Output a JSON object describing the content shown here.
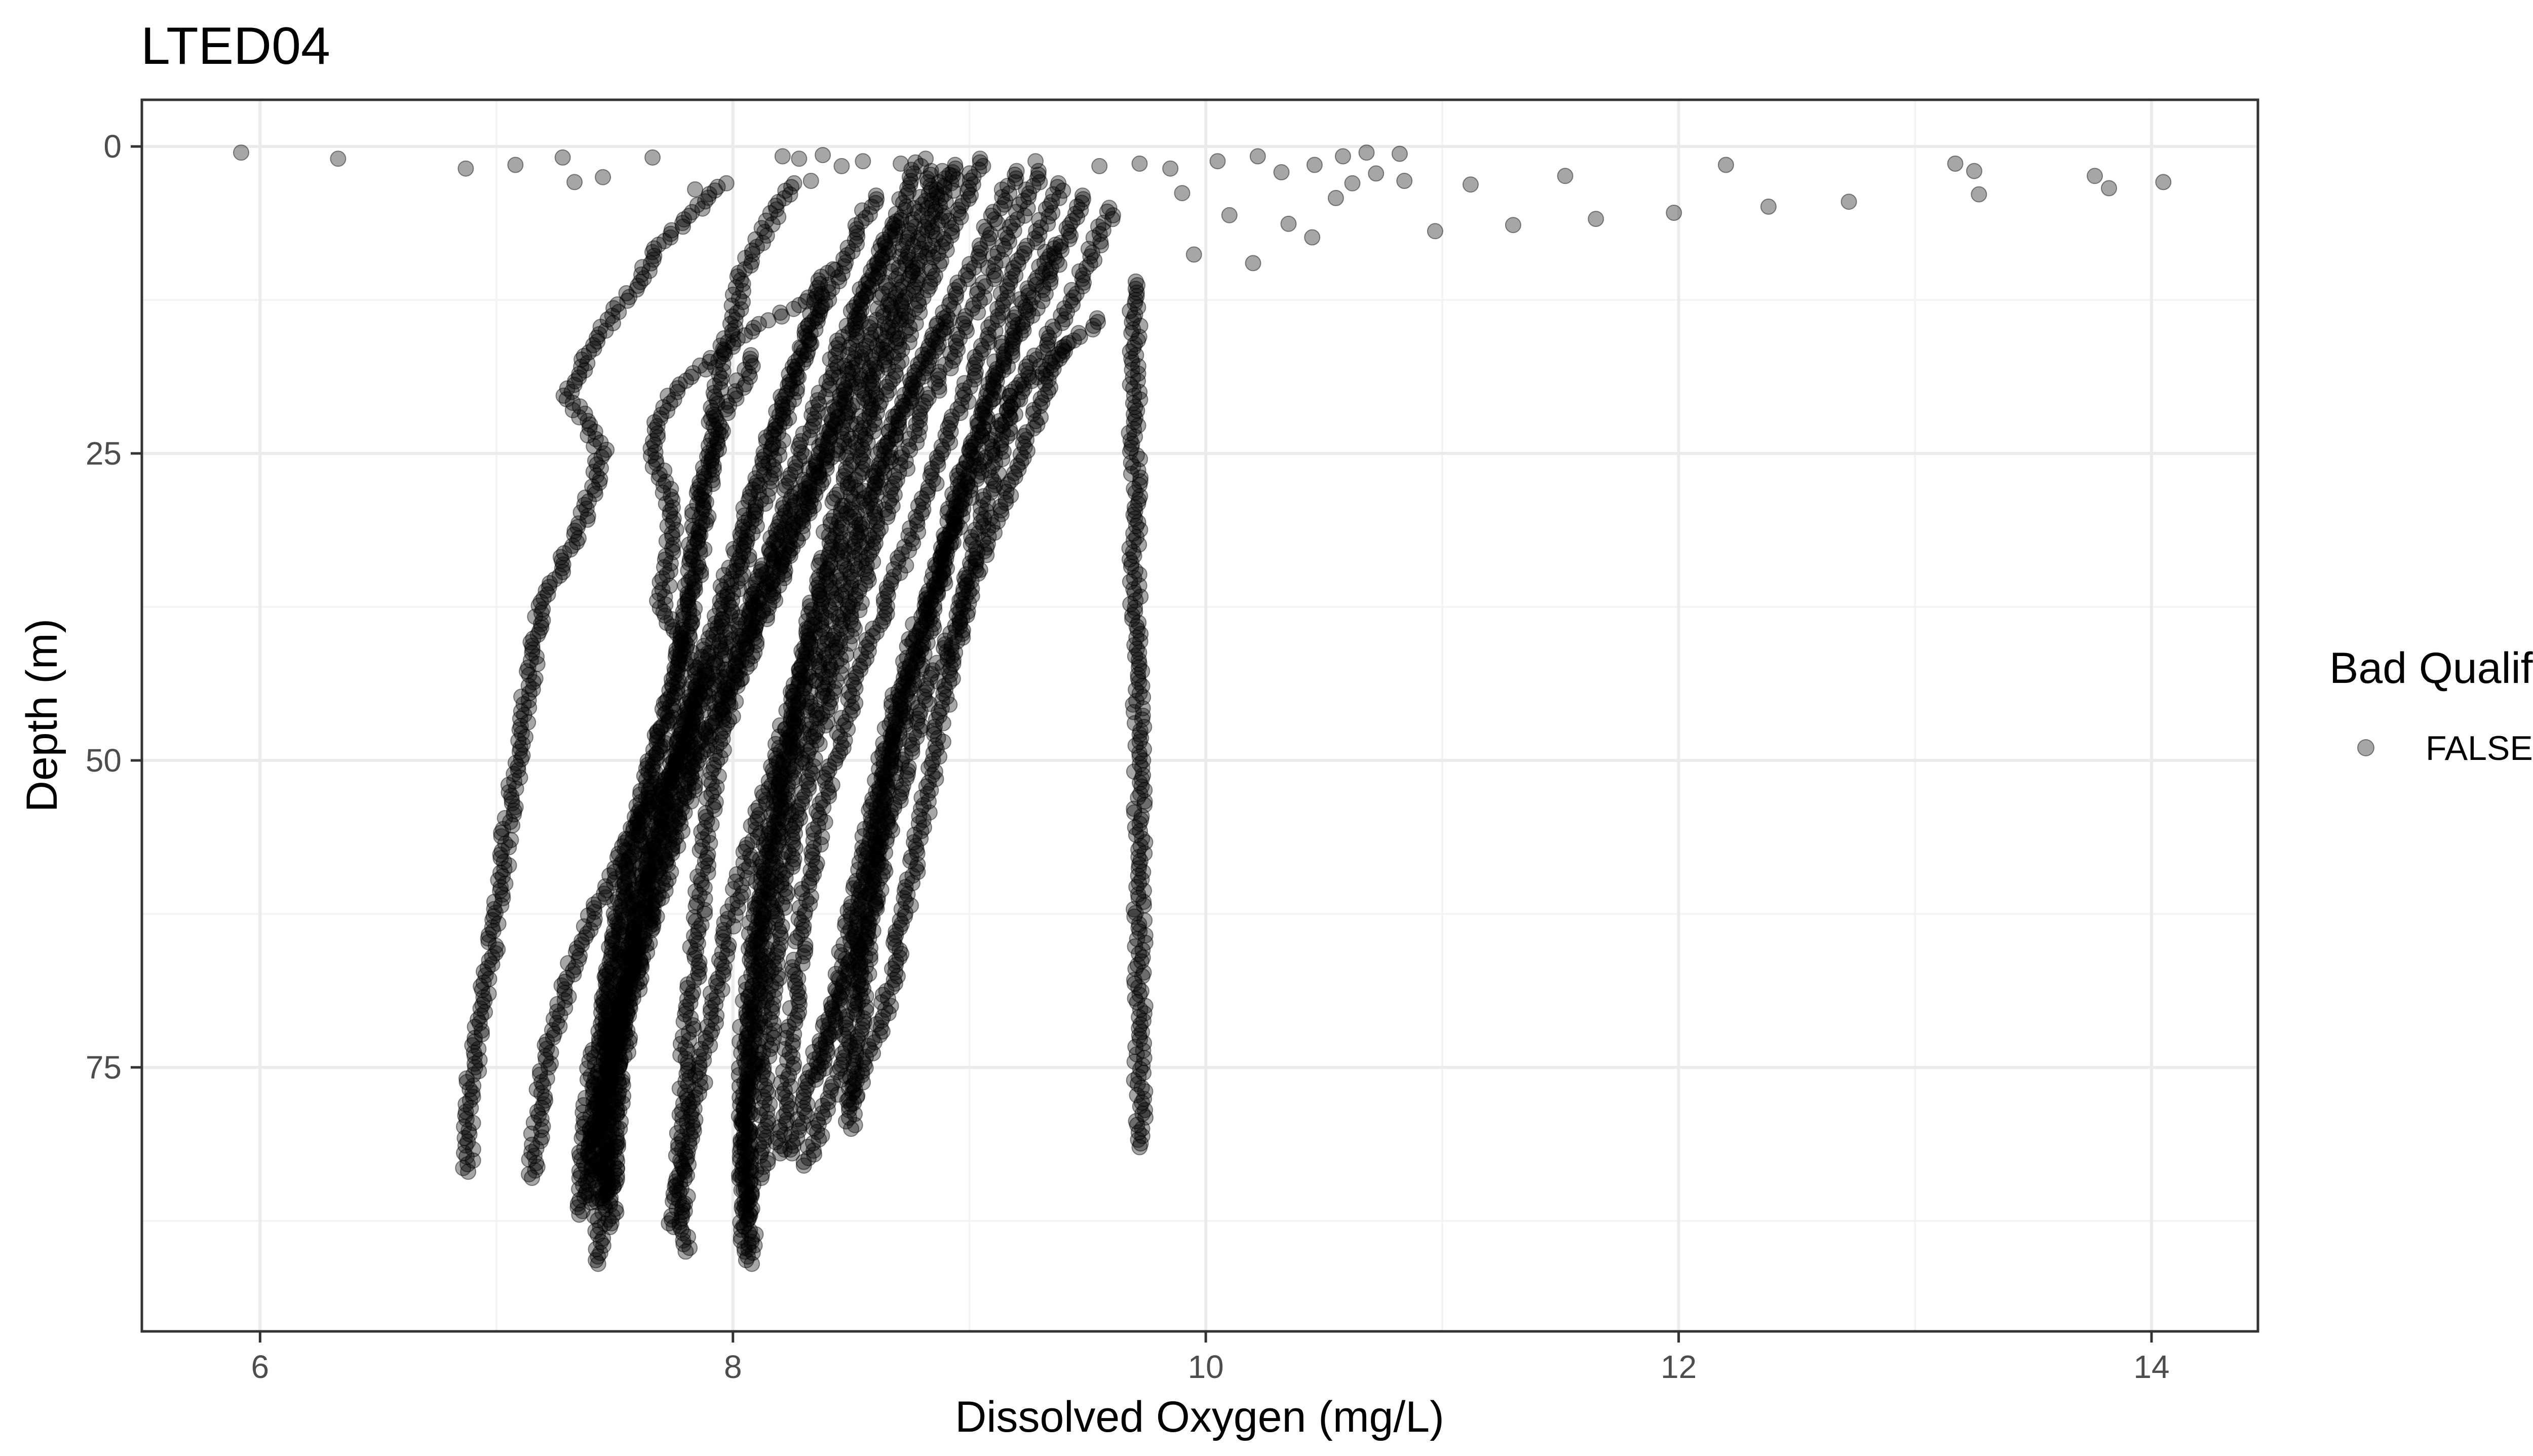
{
  "chart_data": {
    "type": "scatter",
    "title": "LTED04",
    "xlabel": "Dissolved Oxygen (mg/L)",
    "ylabel": "Depth (m)",
    "xlim": [
      5.5,
      14.45
    ],
    "ylim": [
      96.5,
      -3.8
    ],
    "y_reversed": true,
    "x_ticks": [
      6,
      8,
      10,
      12,
      14
    ],
    "y_ticks": [
      0,
      25,
      50,
      75
    ],
    "grid": true,
    "legend": {
      "title": "Bad Qualifier",
      "position": "right",
      "entries": [
        {
          "label": "FALSE",
          "color": "#000000",
          "alpha": 0.35
        }
      ]
    },
    "point_color": "#000000",
    "point_alpha": 0.35,
    "surface_points": [
      [
        5.92,
        0.5
      ],
      [
        6.33,
        1.0
      ],
      [
        6.87,
        1.8
      ],
      [
        7.08,
        1.5
      ],
      [
        7.28,
        0.9
      ],
      [
        7.33,
        2.9
      ],
      [
        7.45,
        2.5
      ],
      [
        7.66,
        0.9
      ],
      [
        7.84,
        3.5
      ],
      [
        8.21,
        0.8
      ],
      [
        8.28,
        1.0
      ],
      [
        8.33,
        2.8
      ],
      [
        8.38,
        0.7
      ],
      [
        8.46,
        1.6
      ],
      [
        8.55,
        1.2
      ],
      [
        8.71,
        1.4
      ],
      [
        9.28,
        1.2
      ],
      [
        9.55,
        1.6
      ],
      [
        9.72,
        1.4
      ],
      [
        9.85,
        1.8
      ],
      [
        10.05,
        1.2
      ],
      [
        10.22,
        0.8
      ],
      [
        10.32,
        2.1
      ],
      [
        10.46,
        1.5
      ],
      [
        10.58,
        0.8
      ],
      [
        10.68,
        0.5
      ],
      [
        10.72,
        2.2
      ],
      [
        10.82,
        0.6
      ],
      [
        10.84,
        2.8
      ],
      [
        10.97,
        6.9
      ],
      [
        11.12,
        3.1
      ],
      [
        11.3,
        6.4
      ],
      [
        11.52,
        2.4
      ],
      [
        11.65,
        5.9
      ],
      [
        11.98,
        5.4
      ],
      [
        12.2,
        1.5
      ],
      [
        12.38,
        4.9
      ],
      [
        12.72,
        4.5
      ],
      [
        13.17,
        1.4
      ],
      [
        13.25,
        2.0
      ],
      [
        13.27,
        3.9
      ],
      [
        13.76,
        2.4
      ],
      [
        13.82,
        3.4
      ],
      [
        14.05,
        2.9
      ],
      [
        10.1,
        5.6
      ],
      [
        10.35,
        6.3
      ],
      [
        9.95,
        8.8
      ],
      [
        10.2,
        9.5
      ],
      [
        10.55,
        4.2
      ],
      [
        10.45,
        7.4
      ],
      [
        9.9,
        3.8
      ],
      [
        10.62,
        3.0
      ]
    ],
    "profiles": [
      {
        "max_depth": 83.5,
        "points": [
          [
            7.95,
            3.0
          ],
          [
            7.7,
            8.0
          ],
          [
            7.45,
            15.0
          ],
          [
            7.3,
            20.0
          ],
          [
            7.45,
            25.0
          ],
          [
            7.35,
            31.0
          ],
          [
            7.18,
            38.0
          ],
          [
            7.12,
            46.0
          ],
          [
            7.05,
            55.0
          ],
          [
            7.0,
            63.0
          ],
          [
            6.93,
            72.0
          ],
          [
            6.88,
            78.0
          ],
          [
            6.88,
            83.5
          ]
        ]
      },
      {
        "max_depth": 84.0,
        "points": [
          [
            8.35,
            12.0
          ],
          [
            8.0,
            16.0
          ],
          [
            7.75,
            20.0
          ],
          [
            7.65,
            24.0
          ],
          [
            7.75,
            30.0
          ],
          [
            7.7,
            37.0
          ],
          [
            7.85,
            43.0
          ],
          [
            7.78,
            50.0
          ],
          [
            7.55,
            57.0
          ],
          [
            7.35,
            65.0
          ],
          [
            7.2,
            75.0
          ],
          [
            7.15,
            84.0
          ]
        ]
      },
      {
        "max_depth": 81.5,
        "points": [
          [
            9.7,
            11.0
          ],
          [
            9.7,
            20.0
          ],
          [
            9.7,
            30.0
          ],
          [
            9.7,
            40.0
          ],
          [
            9.72,
            50.0
          ],
          [
            9.72,
            60.0
          ],
          [
            9.72,
            70.0
          ],
          [
            9.72,
            81.5
          ]
        ]
      },
      {
        "max_depth": 91.0,
        "points": [
          [
            8.8,
            1.0
          ],
          [
            8.6,
            10.0
          ],
          [
            8.45,
            20.0
          ],
          [
            8.3,
            30.0
          ],
          [
            8.1,
            40.0
          ],
          [
            7.85,
            50.0
          ],
          [
            7.7,
            60.0
          ],
          [
            7.55,
            70.0
          ],
          [
            7.45,
            80.0
          ],
          [
            7.43,
            91.0
          ]
        ]
      },
      {
        "max_depth": 90.0,
        "points": [
          [
            8.95,
            1.5
          ],
          [
            8.75,
            12.0
          ],
          [
            8.55,
            22.0
          ],
          [
            8.4,
            32.0
          ],
          [
            8.3,
            42.0
          ],
          [
            8.2,
            52.0
          ],
          [
            8.12,
            62.0
          ],
          [
            8.08,
            72.0
          ],
          [
            8.05,
            82.0
          ],
          [
            8.05,
            90.0
          ]
        ]
      },
      {
        "max_depth": 88.0,
        "points": [
          [
            9.05,
            1.0
          ],
          [
            8.8,
            12.0
          ],
          [
            8.6,
            22.0
          ],
          [
            8.45,
            32.0
          ],
          [
            8.3,
            42.0
          ],
          [
            8.15,
            52.0
          ],
          [
            8.0,
            62.0
          ],
          [
            7.9,
            72.0
          ],
          [
            7.8,
            82.0
          ],
          [
            7.75,
            88.0
          ]
        ]
      },
      {
        "max_depth": 87.0,
        "points": [
          [
            9.2,
            2.0
          ],
          [
            8.95,
            12.0
          ],
          [
            8.7,
            22.0
          ],
          [
            8.55,
            32.0
          ],
          [
            8.4,
            42.0
          ],
          [
            8.25,
            52.0
          ],
          [
            8.15,
            62.0
          ],
          [
            8.1,
            72.0
          ],
          [
            8.05,
            80.0
          ],
          [
            8.07,
            87.0
          ]
        ]
      },
      {
        "max_depth": 86.0,
        "points": [
          [
            8.85,
            2.0
          ],
          [
            8.65,
            12.0
          ],
          [
            8.45,
            22.0
          ],
          [
            8.2,
            32.0
          ],
          [
            7.95,
            42.0
          ],
          [
            7.75,
            52.0
          ],
          [
            7.6,
            62.0
          ],
          [
            7.5,
            72.0
          ],
          [
            7.42,
            80.0
          ],
          [
            7.4,
            86.0
          ]
        ]
      },
      {
        "max_depth": 85.0,
        "points": [
          [
            8.9,
            2.0
          ],
          [
            8.7,
            12.0
          ],
          [
            8.5,
            22.0
          ],
          [
            8.25,
            32.0
          ],
          [
            8.0,
            42.0
          ],
          [
            7.8,
            52.0
          ],
          [
            7.65,
            62.0
          ],
          [
            7.55,
            72.0
          ],
          [
            7.5,
            80.0
          ],
          [
            7.48,
            85.0
          ]
        ]
      },
      {
        "max_depth": 86.0,
        "points": [
          [
            8.4,
            10.0
          ],
          [
            8.25,
            20.0
          ],
          [
            8.1,
            30.0
          ],
          [
            7.95,
            40.0
          ],
          [
            7.75,
            50.0
          ],
          [
            7.6,
            60.0
          ],
          [
            7.5,
            70.0
          ],
          [
            7.45,
            78.0
          ],
          [
            7.45,
            86.0
          ]
        ]
      },
      {
        "max_depth": 84.0,
        "points": [
          [
            9.3,
            2.0
          ],
          [
            9.05,
            12.0
          ],
          [
            8.8,
            22.0
          ],
          [
            8.6,
            32.0
          ],
          [
            8.45,
            42.0
          ],
          [
            8.3,
            52.0
          ],
          [
            8.2,
            62.0
          ],
          [
            8.15,
            72.0
          ],
          [
            8.12,
            84.0
          ]
        ]
      },
      {
        "max_depth": 82.0,
        "points": [
          [
            9.4,
            3.0
          ],
          [
            9.15,
            12.0
          ],
          [
            8.95,
            22.0
          ],
          [
            8.75,
            32.0
          ],
          [
            8.55,
            42.0
          ],
          [
            8.4,
            52.0
          ],
          [
            8.3,
            62.0
          ],
          [
            8.25,
            72.0
          ],
          [
            8.2,
            82.0
          ]
        ]
      },
      {
        "max_depth": 80.0,
        "points": [
          [
            9.5,
            4.0
          ],
          [
            9.3,
            12.0
          ],
          [
            9.1,
            20.0
          ],
          [
            8.95,
            28.0
          ],
          [
            8.85,
            38.0
          ],
          [
            8.7,
            48.0
          ],
          [
            8.6,
            58.0
          ],
          [
            8.55,
            68.0
          ],
          [
            8.5,
            80.0
          ]
        ]
      },
      {
        "max_depth": 78.0,
        "points": [
          [
            9.6,
            5.0
          ],
          [
            9.45,
            12.0
          ],
          [
            9.2,
            20.0
          ],
          [
            9.05,
            30.0
          ],
          [
            8.95,
            40.0
          ],
          [
            8.85,
            50.0
          ],
          [
            8.75,
            60.0
          ],
          [
            8.65,
            70.0
          ],
          [
            8.5,
            78.0
          ]
        ]
      },
      {
        "max_depth": 76.0,
        "points": [
          [
            9.35,
            8.0
          ],
          [
            9.15,
            16.0
          ],
          [
            9.0,
            26.0
          ],
          [
            8.85,
            36.0
          ],
          [
            8.7,
            46.0
          ],
          [
            8.6,
            56.0
          ],
          [
            8.5,
            66.0
          ],
          [
            8.35,
            76.0
          ]
        ]
      },
      {
        "max_depth": 82.0,
        "points": [
          [
            9.55,
            14.0
          ],
          [
            9.2,
            20.0
          ],
          [
            9.0,
            28.0
          ],
          [
            8.8,
            38.0
          ],
          [
            8.65,
            48.0
          ],
          [
            8.55,
            58.0
          ],
          [
            8.45,
            68.0
          ],
          [
            8.3,
            78.0
          ],
          [
            8.25,
            82.0
          ]
        ]
      },
      {
        "max_depth": 90.0,
        "points": [
          [
            8.7,
            6.0
          ],
          [
            8.5,
            14.0
          ],
          [
            8.3,
            24.0
          ],
          [
            8.15,
            34.0
          ],
          [
            8.0,
            44.0
          ],
          [
            7.9,
            54.0
          ],
          [
            7.85,
            64.0
          ],
          [
            7.8,
            74.0
          ],
          [
            7.78,
            84.0
          ],
          [
            7.8,
            90.0
          ]
        ]
      },
      {
        "max_depth": 88.0,
        "points": [
          [
            8.6,
            4.0
          ],
          [
            8.35,
            14.0
          ],
          [
            8.15,
            24.0
          ],
          [
            8.0,
            34.0
          ],
          [
            7.85,
            44.0
          ],
          [
            7.7,
            54.0
          ],
          [
            7.6,
            64.0
          ],
          [
            7.5,
            74.0
          ],
          [
            7.48,
            88.0
          ]
        ]
      },
      {
        "max_depth": 87.0,
        "points": [
          [
            8.1,
            17.0
          ],
          [
            7.95,
            22.0
          ],
          [
            7.85,
            30.0
          ],
          [
            7.8,
            40.0
          ],
          [
            7.7,
            48.0
          ],
          [
            7.6,
            56.0
          ],
          [
            7.5,
            66.0
          ],
          [
            7.4,
            76.0
          ],
          [
            7.35,
            87.0
          ]
        ]
      },
      {
        "max_depth": 84.0,
        "points": [
          [
            8.25,
            3.0
          ],
          [
            8.05,
            10.0
          ],
          [
            7.95,
            18.0
          ],
          [
            7.9,
            26.0
          ],
          [
            7.85,
            34.0
          ],
          [
            7.75,
            44.0
          ],
          [
            7.6,
            54.0
          ],
          [
            7.5,
            64.0
          ],
          [
            7.45,
            74.0
          ],
          [
            7.4,
            84.0
          ]
        ]
      },
      {
        "max_depth": 91.0,
        "points": [
          [
            8.9,
            14.0
          ],
          [
            8.7,
            22.0
          ],
          [
            8.5,
            32.0
          ],
          [
            8.35,
            42.0
          ],
          [
            8.2,
            52.0
          ],
          [
            8.1,
            62.0
          ],
          [
            8.05,
            72.0
          ],
          [
            8.05,
            82.0
          ],
          [
            8.08,
            91.0
          ]
        ]
      },
      {
        "max_depth": 83.0,
        "points": [
          [
            9.4,
            16.0
          ],
          [
            9.2,
            26.0
          ],
          [
            9.0,
            36.0
          ],
          [
            8.8,
            46.0
          ],
          [
            8.65,
            56.0
          ],
          [
            8.55,
            66.0
          ],
          [
            8.45,
            76.0
          ],
          [
            8.3,
            83.0
          ]
        ]
      }
    ]
  }
}
